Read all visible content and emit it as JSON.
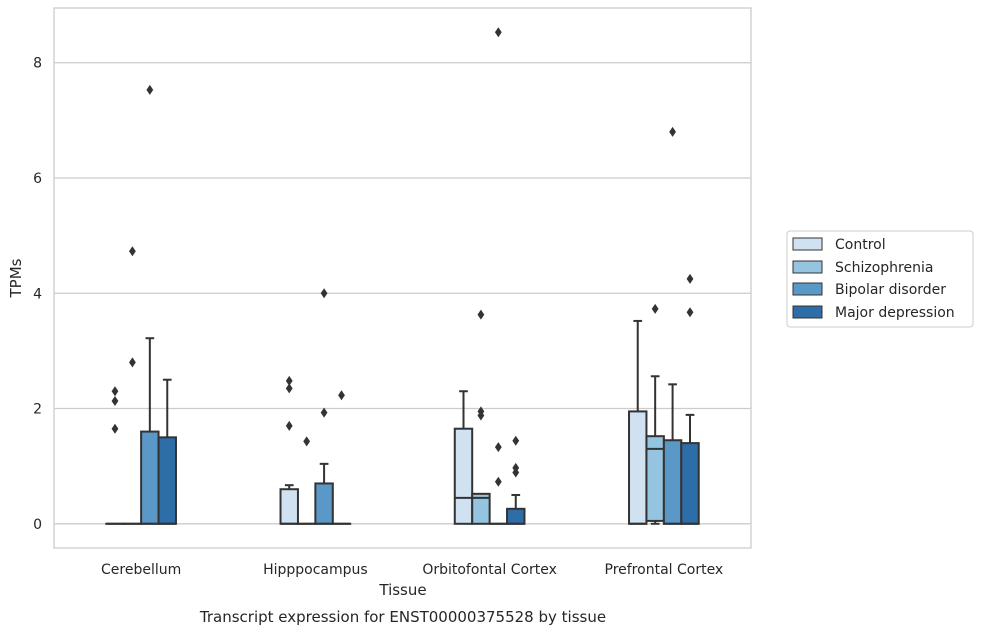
{
  "chart_data": {
    "type": "box",
    "xlabel": "Tissue",
    "ylabel": "TPMs",
    "caption": "Transcript expression for ENST00000375528 by tissue",
    "categories": [
      "Cerebellum",
      "Hipppocampus",
      "Orbitofontal Cortex",
      "Prefrontal Cortex"
    ],
    "ylim": [
      -0.42,
      8.95
    ],
    "yticks": [
      0,
      2,
      4,
      6,
      8
    ],
    "grid": "horizontal",
    "legend_position": "right",
    "series": [
      {
        "name": "Control",
        "color": "#d0e1f2",
        "boxes": [
          {
            "q1": 0,
            "median": 0,
            "q3": 0,
            "whisker_low": 0,
            "whisker_high": 0,
            "outliers": [
              1.65,
              2.13,
              2.3
            ]
          },
          {
            "q1": 0,
            "median": 0,
            "q3": 0.6,
            "whisker_low": 0,
            "whisker_high": 0.67,
            "outliers": [
              1.7,
              2.35,
              2.48
            ]
          },
          {
            "q1": 0,
            "median": 0.45,
            "q3": 1.65,
            "whisker_low": 0,
            "whisker_high": 2.3,
            "outliers": []
          },
          {
            "q1": 0,
            "median": 0,
            "q3": 1.95,
            "whisker_low": 0,
            "whisker_high": 3.52,
            "outliers": []
          }
        ]
      },
      {
        "name": "Schizophrenia",
        "color": "#94c4df",
        "boxes": [
          {
            "q1": 0,
            "median": 0,
            "q3": 0,
            "whisker_low": 0,
            "whisker_high": 0,
            "outliers": [
              2.8,
              4.73
            ]
          },
          {
            "q1": 0,
            "median": 0,
            "q3": 0,
            "whisker_low": 0,
            "whisker_high": 0,
            "outliers": [
              1.43
            ]
          },
          {
            "q1": 0,
            "median": 0.45,
            "q3": 0.52,
            "whisker_low": 0,
            "whisker_high": 0.52,
            "outliers": [
              1.88,
              1.95,
              3.63
            ]
          },
          {
            "q1": 0.05,
            "median": 1.3,
            "q3": 1.52,
            "whisker_low": 0,
            "whisker_high": 2.56,
            "outliers": [
              3.73
            ]
          }
        ]
      },
      {
        "name": "Bipolar disorder",
        "color": "#5a98c8",
        "boxes": [
          {
            "q1": 0,
            "median": 0,
            "q3": 1.6,
            "whisker_low": 0,
            "whisker_high": 3.22,
            "outliers": [
              7.53
            ]
          },
          {
            "q1": 0,
            "median": 0,
            "q3": 0.7,
            "whisker_low": 0,
            "whisker_high": 1.04,
            "outliers": [
              1.93,
              4.0
            ]
          },
          {
            "q1": 0,
            "median": 0,
            "q3": 0,
            "whisker_low": 0,
            "whisker_high": 0,
            "outliers": [
              0.73,
              1.33,
              8.53
            ]
          },
          {
            "q1": 0,
            "median": 0,
            "q3": 1.45,
            "whisker_low": 0,
            "whisker_high": 2.42,
            "outliers": [
              6.8
            ]
          }
        ]
      },
      {
        "name": "Major depression",
        "color": "#2d6ea8",
        "boxes": [
          {
            "q1": 0,
            "median": 0,
            "q3": 1.5,
            "whisker_low": 0,
            "whisker_high": 2.5,
            "outliers": []
          },
          {
            "q1": 0,
            "median": 0,
            "q3": 0,
            "whisker_low": 0,
            "whisker_high": 0,
            "outliers": [
              2.23
            ]
          },
          {
            "q1": 0,
            "median": 0,
            "q3": 0.26,
            "whisker_low": 0,
            "whisker_high": 0.5,
            "outliers": [
              0.89,
              0.97,
              1.44
            ]
          },
          {
            "q1": 0,
            "median": 0,
            "q3": 1.4,
            "whisker_low": 0,
            "whisker_high": 1.89,
            "outliers": [
              3.67,
              4.25
            ]
          }
        ]
      }
    ]
  }
}
